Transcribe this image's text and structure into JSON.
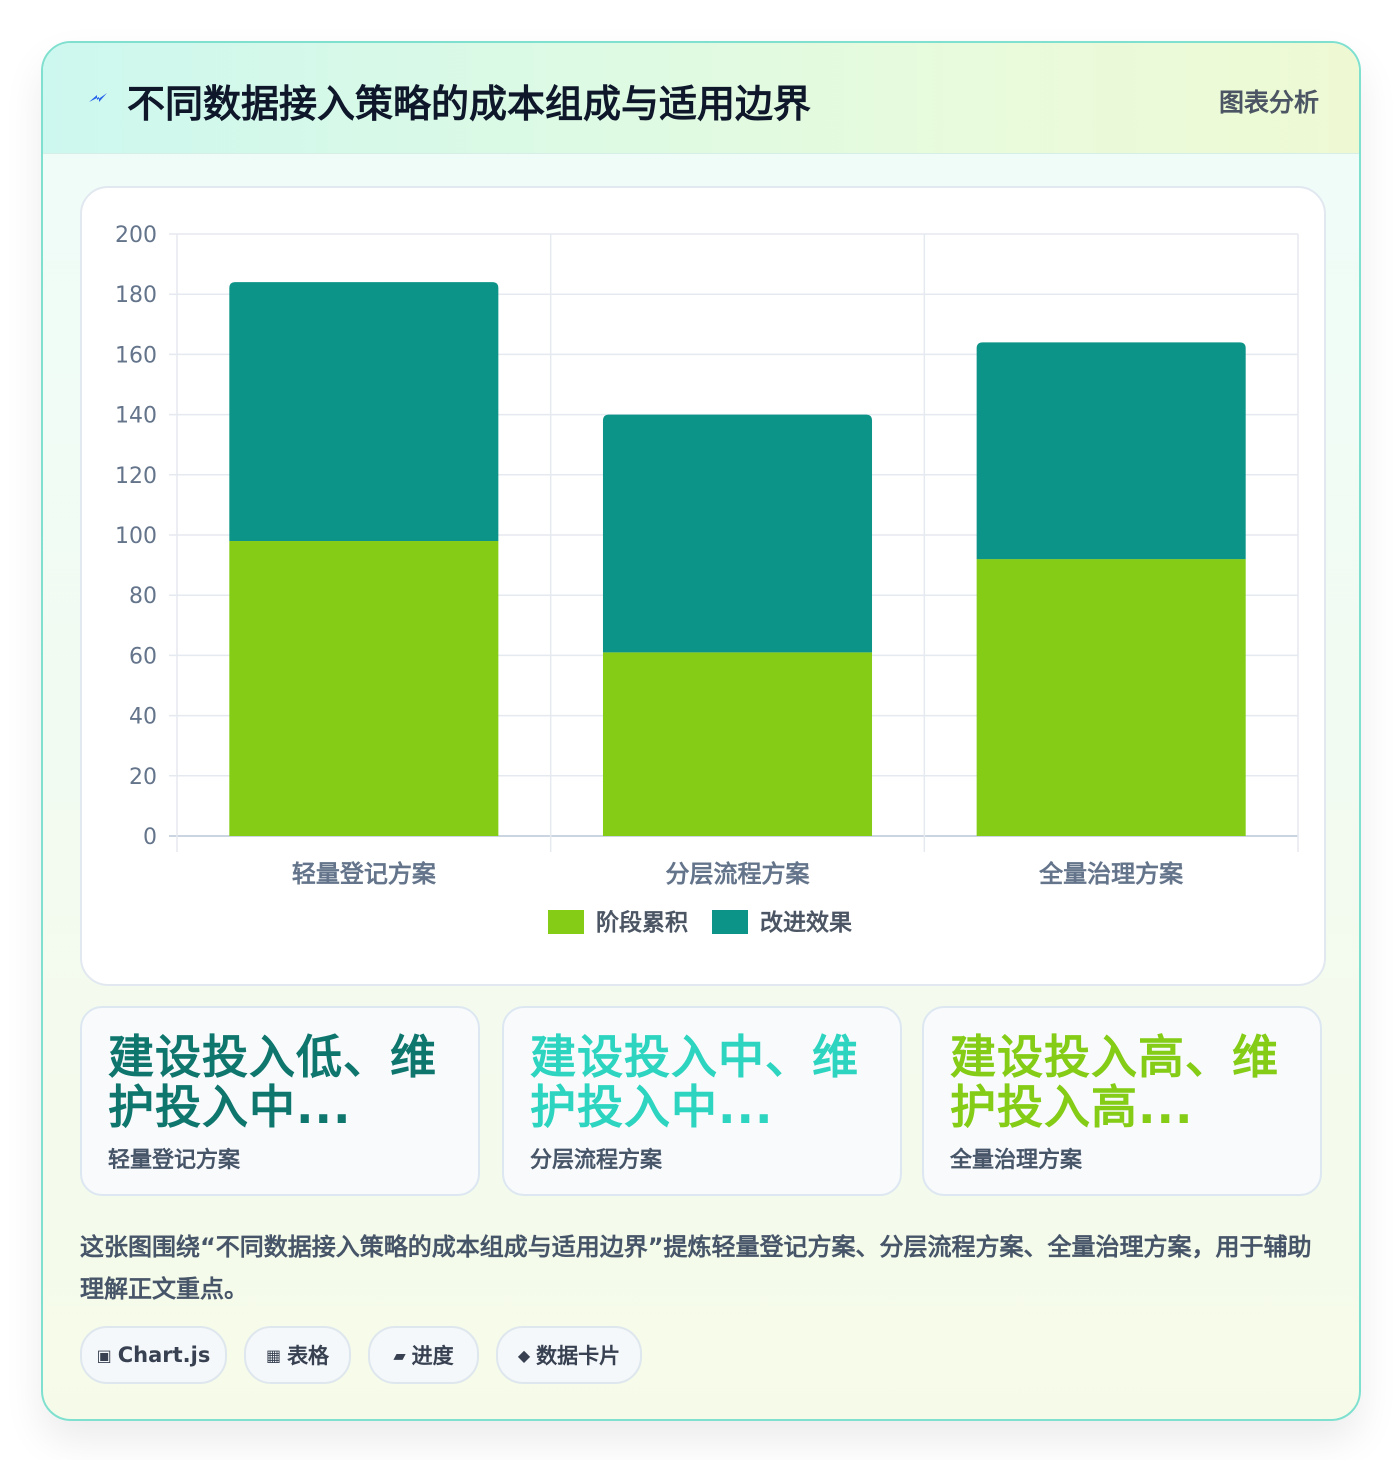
{
  "header": {
    "icon": "lightning-icon",
    "title": "不同数据接入策略的成本组成与适用边界",
    "tag": "图表分析"
  },
  "chart_data": {
    "type": "bar",
    "stacked": true,
    "categories": [
      "轻量登记方案",
      "分层流程方案",
      "全量治理方案"
    ],
    "series": [
      {
        "name": "阶段累积",
        "values": [
          98,
          61,
          92
        ],
        "color": "#84cc16"
      },
      {
        "name": "改进效果",
        "values": [
          86,
          79,
          72
        ],
        "color": "#0d9488"
      }
    ],
    "ylim": [
      0,
      200
    ],
    "yticks": [
      0,
      20,
      40,
      60,
      80,
      100,
      120,
      140,
      160,
      180,
      200
    ],
    "grid": true,
    "legend": "bottom"
  },
  "cards": [
    {
      "headline": "建设投入低、维护投入中...",
      "label": "轻量登记方案",
      "color": "#0f766e"
    },
    {
      "headline": "建设投入中、维护投入中...",
      "label": "分层流程方案",
      "color": "#2dd4bf"
    },
    {
      "headline": "建设投入高、维护投入高...",
      "label": "全量治理方案",
      "color": "#84cc16"
    }
  ],
  "description": "这张图围绕“不同数据接入策略的成本组成与适用边界”提炼轻量登记方案、分层流程方案、全量治理方案，用于辅助理解正文重点。",
  "chips": [
    {
      "icon": "▣",
      "label": "Chart.js"
    },
    {
      "icon": "▦",
      "label": "表格"
    },
    {
      "icon": "▰",
      "label": "进度"
    },
    {
      "icon": "◆",
      "label": "数据卡片"
    }
  ]
}
